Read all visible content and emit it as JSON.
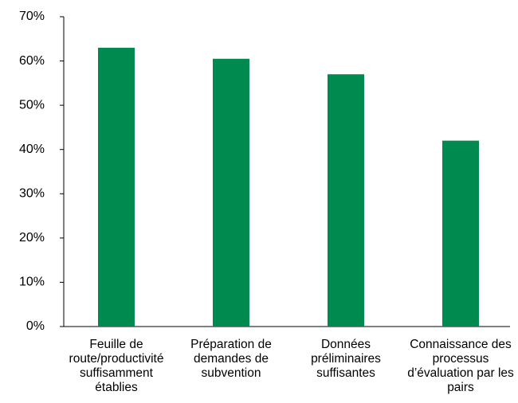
{
  "chart_data": {
    "type": "bar",
    "categories": [
      "Feuille de route/productivité suffisamment établies",
      "Préparation de demandes de subvention",
      "Données préliminaires suffisantes",
      "Connaissance des processus d’évaluation par les pairs"
    ],
    "values": [
      63,
      60.5,
      57,
      42
    ],
    "color": "#008a50",
    "ylim": [
      0,
      70
    ],
    "yticks": [
      {
        "value": 0,
        "label": "0%"
      },
      {
        "value": 10,
        "label": "10%"
      },
      {
        "value": 20,
        "label": "20%"
      },
      {
        "value": 30,
        "label": "30%"
      },
      {
        "value": 40,
        "label": "40%"
      },
      {
        "value": 50,
        "label": "50%"
      },
      {
        "value": 60,
        "label": "60%"
      },
      {
        "value": 70,
        "label": "70%"
      }
    ],
    "grid": false
  }
}
